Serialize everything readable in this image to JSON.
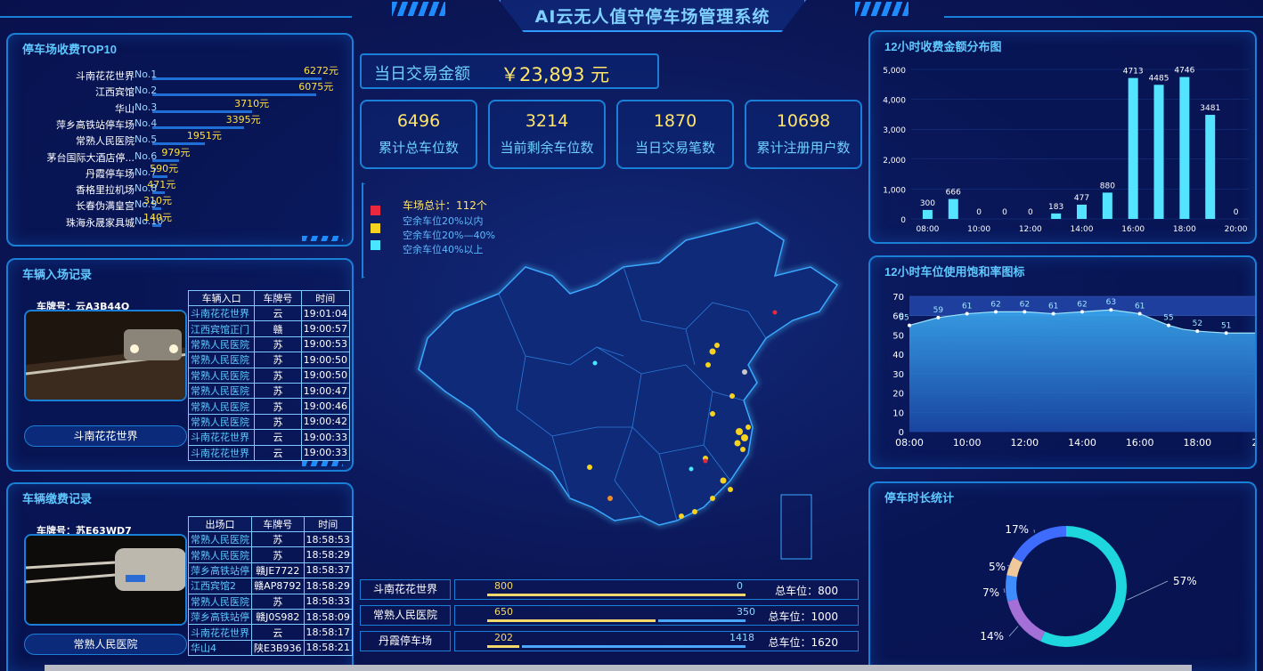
{
  "title": "AI云无人值守停车场管理系统",
  "top10": {
    "title": "停车场收费TOP10",
    "items": [
      {
        "name": "斗南花花世界",
        "no": "No.1",
        "value": "6272元",
        "frac": 1.0
      },
      {
        "name": "江西宾馆",
        "no": "No.2",
        "value": "6075元",
        "frac": 0.97
      },
      {
        "name": "华山",
        "no": "No.3",
        "value": "3710元",
        "frac": 0.59
      },
      {
        "name": "萍乡高铁站停车场",
        "no": "No.4",
        "value": "3395元",
        "frac": 0.54
      },
      {
        "name": "常熟人民医院",
        "no": "No.5",
        "value": "1951元",
        "frac": 0.31
      },
      {
        "name": "茅台国际大酒店停...",
        "no": "No.6",
        "value": "979元",
        "frac": 0.16
      },
      {
        "name": "丹霞停车场",
        "no": "No.7",
        "value": "590元",
        "frac": 0.09
      },
      {
        "name": "香格里拉机场",
        "no": "No.8",
        "value": "471元",
        "frac": 0.075
      },
      {
        "name": "长春伪满皇宫",
        "no": "No.9",
        "value": "310元",
        "frac": 0.05
      },
      {
        "name": "珠海永晟家具城",
        "no": "No.10",
        "value": "140元",
        "frac": 0.02
      }
    ]
  },
  "entry": {
    "title": "车辆入场记录",
    "plate": "车牌号：云A3B44Q",
    "camera": "斗南花花世界",
    "headers": [
      "车辆入口",
      "车牌号",
      "时间"
    ],
    "rows": [
      [
        "斗南花花世界",
        "云",
        "19:01:04"
      ],
      [
        "江西宾馆正门",
        "赣",
        "19:00:57"
      ],
      [
        "常熟人民医院",
        "苏",
        "19:00:53"
      ],
      [
        "常熟人民医院",
        "苏",
        "19:00:50"
      ],
      [
        "常熟人民医院",
        "苏",
        "19:00:50"
      ],
      [
        "常熟人民医院",
        "苏",
        "19:00:47"
      ],
      [
        "常熟人民医院",
        "苏",
        "19:00:46"
      ],
      [
        "常熟人民医院",
        "苏",
        "19:00:42"
      ],
      [
        "斗南花花世界",
        "云",
        "19:00:33"
      ],
      [
        "斗南花花世界",
        "云",
        "19:00:33"
      ]
    ]
  },
  "payment": {
    "title": "车辆缴费记录",
    "plate": "车牌号：苏E63WD7",
    "camera": "常熟人民医院",
    "headers": [
      "出场口",
      "车牌号",
      "时间"
    ],
    "rows": [
      [
        "常熟人民医院",
        "苏",
        "18:58:53"
      ],
      [
        "常熟人民医院",
        "苏",
        "18:58:29"
      ],
      [
        "萍乡高铁站停",
        "赣JE7722",
        "18:58:37"
      ],
      [
        "江西宾馆2",
        "赣AP8792",
        "18:58:29"
      ],
      [
        "常熟人民医院",
        "苏",
        "18:58:33"
      ],
      [
        "萍乡高铁站停",
        "赣J0S982",
        "18:58:09"
      ],
      [
        "斗南花花世界",
        "云",
        "18:58:17"
      ],
      [
        "华山4",
        "陕E3B936",
        "18:58:21"
      ]
    ]
  },
  "txn": {
    "label": "当日交易金额",
    "value": "￥23,893 元"
  },
  "stats": [
    {
      "value": "6496",
      "label": "累计总车位数"
    },
    {
      "value": "3214",
      "label": "当前剩余车位数"
    },
    {
      "value": "1870",
      "label": "当日交易笔数"
    },
    {
      "value": "10698",
      "label": "累计注册用户数"
    }
  ],
  "legend": {
    "total": "车场总计：112个",
    "items": [
      {
        "label": "空余车位20%以内",
        "color": "#e8283c"
      },
      {
        "label": "空余车位20%—40%",
        "color": "#f7d21e"
      },
      {
        "label": "空余车位40%以上",
        "color": "#49e6ff"
      }
    ]
  },
  "parking": [
    {
      "name": "斗南花花世界",
      "used": "800",
      "free": "0",
      "total": "总车位：800",
      "used_frac": 1.0
    },
    {
      "name": "常熟人民医院",
      "used": "650",
      "free": "350",
      "total": "总车位：1000",
      "used_frac": 0.65
    },
    {
      "name": "丹霞停车场",
      "used": "202",
      "free": "1418",
      "total": "总车位：1620",
      "used_frac": 0.125
    }
  ],
  "chart_data": [
    {
      "type": "bar",
      "title": "12小时收费金额分布图",
      "categories": [
        "08:00",
        "09:00",
        "10:00",
        "11:00",
        "12:00",
        "13:00",
        "14:00",
        "15:00",
        "16:00",
        "17:00",
        "18:00",
        "19:00",
        "20:00"
      ],
      "values": [
        300,
        666,
        0,
        0,
        0,
        183,
        477,
        880,
        4713,
        4485,
        4746,
        3481,
        0
      ],
      "xticks": [
        "08:00",
        "10:00",
        "12:00",
        "14:00",
        "16:00",
        "18:00",
        "20:00"
      ],
      "yticks": [
        "0",
        "1,000",
        "2,000",
        "3,000",
        "4,000",
        "5,000"
      ],
      "ylim": [
        0,
        5000
      ]
    },
    {
      "type": "area",
      "title": "12小时车位使用饱和率图标",
      "x": [
        "08:00",
        "08:30",
        "09:00",
        "09:30",
        "10:00",
        "10:30",
        "11:00",
        "11:30",
        "12:00",
        "12:30",
        "13:00",
        "13:30",
        "14:00",
        "14:30",
        "15:00",
        "15:30",
        "16:00",
        "16:30",
        "17:00",
        "17:30",
        "18:00",
        "18:30",
        "19:00",
        "19:30",
        "20:00"
      ],
      "values": [
        55,
        57,
        59,
        60,
        61,
        61.5,
        62,
        62,
        62,
        61.5,
        61,
        61.5,
        62,
        62.5,
        63,
        62,
        61,
        58,
        55,
        53,
        52,
        51.5,
        51,
        51,
        51
      ],
      "labels": [
        {
          "x": 0,
          "v": "55"
        },
        {
          "x": 2,
          "v": "59"
        },
        {
          "x": 4,
          "v": "61"
        },
        {
          "x": 6,
          "v": "62"
        },
        {
          "x": 8,
          "v": "62"
        },
        {
          "x": 10,
          "v": "61"
        },
        {
          "x": 12,
          "v": "62"
        },
        {
          "x": 14,
          "v": "63"
        },
        {
          "x": 16,
          "v": "61"
        },
        {
          "x": 18,
          "v": "55"
        },
        {
          "x": 20,
          "v": "52"
        },
        {
          "x": 22,
          "v": "51"
        }
      ],
      "xticks": [
        "08:00",
        "10:00",
        "12:00",
        "14:00",
        "16:00",
        "18:00",
        "2"
      ],
      "yticks": [
        "0",
        "10",
        "20",
        "30",
        "40",
        "50",
        "60",
        "70"
      ],
      "ylim": [
        0,
        70
      ]
    },
    {
      "type": "pie",
      "title": "停车时长统计",
      "slices": [
        {
          "label": "57%",
          "value": 57,
          "color": "#1ed6de"
        },
        {
          "label": "14%",
          "value": 14,
          "color": "#a46fd6"
        },
        {
          "label": "7%",
          "value": 7,
          "color": "#3f8cff"
        },
        {
          "label": "5%",
          "value": 5,
          "color": "#f0c89a"
        },
        {
          "label": "17%",
          "value": 17,
          "color": "#3d6cff"
        }
      ]
    }
  ]
}
